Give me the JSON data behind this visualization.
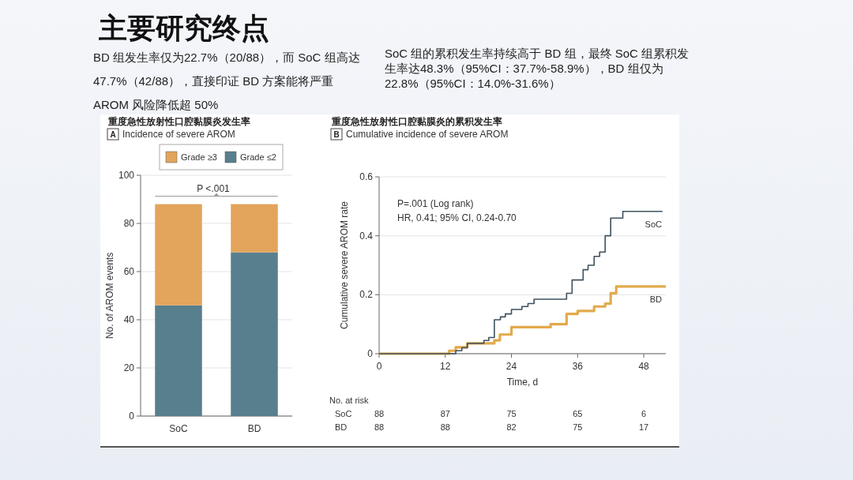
{
  "chart_data": [
    {
      "type": "other",
      "title": "主要研究终点",
      "annotations": [
        "BD 组发生率仅为22.7%（20/88），而 SoC 组高达47.7%（42/88），直接印证 BD 方案能将严重 AROM 风险降低超 50%",
        "SoC 组的累积发生率持续高于 BD 组，最终 SoC 组累积发生率达48.3%（95%CI：37.7%-58.9%），BD 组仅为22.8%（95%CI：14.0%-31.6%）"
      ]
    },
    {
      "type": "bar",
      "stacked": true,
      "title": "重度急性放射性口腔黏膜炎发生率",
      "subtitle": "Incidence of severe AROM",
      "ylabel": "No. of AROM events",
      "categories": [
        "SoC",
        "BD"
      ],
      "series": [
        {
          "name": "Grade ≤2",
          "color": "#587f8e",
          "values": [
            46,
            68
          ]
        },
        {
          "name": "Grade ≥3",
          "color": "#e3a45c",
          "values": [
            42,
            20
          ]
        }
      ],
      "ylim": [
        0,
        100
      ],
      "yticks": [
        0,
        20,
        40,
        60,
        80,
        100
      ],
      "grid": "y",
      "legend": "top",
      "annotations": [
        "A",
        "P <.001"
      ]
    },
    {
      "type": "step",
      "title": "重度急性放射性口腔黏膜炎的累积发生率",
      "subtitle": "Cumulative incidence of severe AROM",
      "xlabel": "Time, d",
      "ylabel": "Cumulative severe AROM rate",
      "series": [
        {
          "name": "SoC",
          "color": "#3e5260",
          "x": [
            0,
            13.9,
            15,
            16,
            19,
            19.9,
            20.9,
            22,
            22.9,
            24,
            25.9,
            27,
            28.1,
            34,
            35,
            37,
            37.9,
            39,
            40,
            41,
            42,
            44.2,
            51.4
          ],
          "values": [
            0,
            0.01,
            0.02,
            0.035,
            0.045,
            0.055,
            0.115,
            0.125,
            0.135,
            0.15,
            0.16,
            0.17,
            0.185,
            0.205,
            0.25,
            0.285,
            0.3,
            0.33,
            0.345,
            0.4,
            0.46,
            0.483,
            0.483
          ]
        },
        {
          "name": "BD",
          "color": "#e2aa4c",
          "x": [
            0,
            12.7,
            13.9,
            16,
            20.9,
            21.9,
            24,
            31.1,
            34,
            36,
            39,
            41,
            42,
            43,
            52
          ],
          "values": [
            0,
            0.01,
            0.022,
            0.035,
            0.045,
            0.065,
            0.09,
            0.1,
            0.135,
            0.145,
            0.16,
            0.17,
            0.205,
            0.228,
            0.228
          ]
        }
      ],
      "xlim": [
        0,
        52
      ],
      "xticks": [
        0,
        12,
        24,
        36,
        48
      ],
      "ylim": [
        0,
        0.6
      ],
      "yticks": [
        0,
        0.2,
        0.4,
        0.6
      ],
      "grid": "y",
      "annotations": [
        "B",
        "P=.001 (Log rank)",
        "HR, 0.41; 95% CI, 0.24-0.70",
        "No. at risk",
        "SoC\t88\t87\t75\t65\t6",
        "BD\t88\t88\t82\t75\t17"
      ]
    }
  ]
}
